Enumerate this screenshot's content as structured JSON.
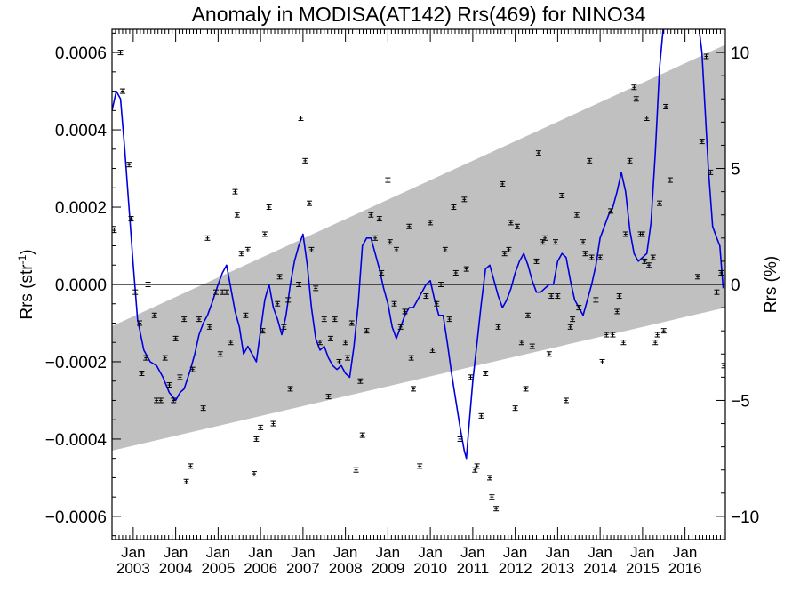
{
  "chart_data": {
    "type": "scatter",
    "title": "Anomaly in MODISA(AT142) Rrs(469) for NINO34",
    "ylabel_left": "Rrs (str",
    "ylabel_left_sup": "-1",
    "ylabel_left_close": ")",
    "ylabel_right": "Rrs (%)",
    "ylim_left": [
      -0.00066,
      0.00066
    ],
    "ylim_right": [
      -11.0,
      11.0
    ],
    "xlim": [
      2002.5,
      2016.95
    ],
    "left_ticks": [
      {
        "v": 0.0006,
        "label": "0.0006"
      },
      {
        "v": 0.0004,
        "label": "0.0004"
      },
      {
        "v": 0.0002,
        "label": "0.0002"
      },
      {
        "v": 0.0,
        "label": "0.0000"
      },
      {
        "v": -0.0002,
        "label": "−0.0002"
      },
      {
        "v": -0.0004,
        "label": "−0.0004"
      },
      {
        "v": -0.0006,
        "label": "−0.0006"
      }
    ],
    "right_ticks": [
      {
        "v": 10,
        "label": "10"
      },
      {
        "v": 5,
        "label": "5"
      },
      {
        "v": 0,
        "label": "0"
      },
      {
        "v": -5,
        "label": "−5"
      },
      {
        "v": -10,
        "label": "−10"
      }
    ],
    "x_ticks": [
      {
        "v": 2003.0,
        "month": "Jan",
        "year": "2003"
      },
      {
        "v": 2004.0,
        "month": "Jan",
        "year": "2004"
      },
      {
        "v": 2005.0,
        "month": "Jan",
        "year": "2005"
      },
      {
        "v": 2006.0,
        "month": "Jan",
        "year": "2006"
      },
      {
        "v": 2007.0,
        "month": "Jan",
        "year": "2007"
      },
      {
        "v": 2008.0,
        "month": "Jan",
        "year": "2008"
      },
      {
        "v": 2009.0,
        "month": "Jan",
        "year": "2009"
      },
      {
        "v": 2010.0,
        "month": "Jan",
        "year": "2010"
      },
      {
        "v": 2011.0,
        "month": "Jan",
        "year": "2011"
      },
      {
        "v": 2012.0,
        "month": "Jan",
        "year": "2012"
      },
      {
        "v": 2013.0,
        "month": "Jan",
        "year": "2013"
      },
      {
        "v": 2014.0,
        "month": "Jan",
        "year": "2014"
      },
      {
        "v": 2015.0,
        "month": "Jan",
        "year": "2015"
      },
      {
        "v": 2016.0,
        "month": "Jan",
        "year": "2016"
      }
    ],
    "band": {
      "x": [
        2002.5,
        2016.95
      ],
      "lower": [
        -0.00043,
        -6e-05
      ],
      "upper": [
        -0.000108,
        0.00062
      ]
    },
    "colors": {
      "smooth": "#0000dd",
      "band": "#c0c0c0",
      "points": "#000000"
    },
    "smooth_line": [
      [
        2002.5,
        0.00045
      ],
      [
        2002.6,
        0.0005
      ],
      [
        2002.7,
        0.00048
      ],
      [
        2002.8,
        0.00035
      ],
      [
        2002.9,
        0.0002
      ],
      [
        2003.0,
        5e-05
      ],
      [
        2003.1,
        -9e-05
      ],
      [
        2003.25,
        -0.00017
      ],
      [
        2003.4,
        -0.0002
      ],
      [
        2003.55,
        -0.00021
      ],
      [
        2003.7,
        -0.00024
      ],
      [
        2003.85,
        -0.00028
      ],
      [
        2004.0,
        -0.0003
      ],
      [
        2004.1,
        -0.00028
      ],
      [
        2004.2,
        -0.00027
      ],
      [
        2004.35,
        -0.00022
      ],
      [
        2004.45,
        -0.00018
      ],
      [
        2004.55,
        -0.00013
      ],
      [
        2004.65,
        -0.0001
      ],
      [
        2004.75,
        -8e-05
      ],
      [
        2004.85,
        -5e-05
      ],
      [
        2005.0,
        0.0
      ],
      [
        2005.1,
        3e-05
      ],
      [
        2005.2,
        5e-05
      ],
      [
        2005.3,
        -1e-05
      ],
      [
        2005.4,
        -7e-05
      ],
      [
        2005.5,
        -0.00011
      ],
      [
        2005.6,
        -0.00018
      ],
      [
        2005.7,
        -0.00016
      ],
      [
        2005.8,
        -0.00018
      ],
      [
        2005.9,
        -0.0002
      ],
      [
        2006.0,
        -0.00012
      ],
      [
        2006.1,
        -4e-05
      ],
      [
        2006.2,
        -0.0
      ],
      [
        2006.3,
        -6e-05
      ],
      [
        2006.4,
        -9e-05
      ],
      [
        2006.5,
        -0.00013
      ],
      [
        2006.6,
        -8e-05
      ],
      [
        2006.7,
        0.0
      ],
      [
        2006.8,
        6e-05
      ],
      [
        2006.9,
        0.0001
      ],
      [
        2007.0,
        0.00013
      ],
      [
        2007.1,
        5e-05
      ],
      [
        2007.2,
        -6e-05
      ],
      [
        2007.3,
        -0.00014
      ],
      [
        2007.4,
        -0.00017
      ],
      [
        2007.5,
        -0.00016
      ],
      [
        2007.6,
        -0.00019
      ],
      [
        2007.7,
        -0.00021
      ],
      [
        2007.8,
        -0.00022
      ],
      [
        2007.9,
        -0.00021
      ],
      [
        2008.0,
        -0.00023
      ],
      [
        2008.1,
        -0.00024
      ],
      [
        2008.2,
        -0.00016
      ],
      [
        2008.3,
        -5e-05
      ],
      [
        2008.4,
        0.0001
      ],
      [
        2008.5,
        0.00012
      ],
      [
        2008.6,
        0.00012
      ],
      [
        2008.7,
        8e-05
      ],
      [
        2008.8,
        4e-05
      ],
      [
        2008.9,
        -1e-05
      ],
      [
        2009.0,
        -5e-05
      ],
      [
        2009.1,
        -0.00011
      ],
      [
        2009.2,
        -0.00014
      ],
      [
        2009.3,
        -0.00011
      ],
      [
        2009.4,
        -8e-05
      ],
      [
        2009.5,
        -6e-05
      ],
      [
        2009.6,
        -6e-05
      ],
      [
        2009.7,
        -4e-05
      ],
      [
        2009.8,
        -2e-05
      ],
      [
        2009.9,
        0.0
      ],
      [
        2010.0,
        1e-05
      ],
      [
        2010.1,
        -4e-05
      ],
      [
        2010.2,
        -8e-05
      ],
      [
        2010.3,
        -8e-05
      ],
      [
        2010.4,
        -0.00015
      ],
      [
        2010.5,
        -0.00023
      ],
      [
        2010.6,
        -0.0003
      ],
      [
        2010.7,
        -0.00037
      ],
      [
        2010.8,
        -0.00043
      ],
      [
        2010.85,
        -0.00045
      ],
      [
        2010.9,
        -0.00038
      ],
      [
        2011.0,
        -0.00025
      ],
      [
        2011.1,
        -0.00015
      ],
      [
        2011.2,
        -5e-05
      ],
      [
        2011.3,
        4e-05
      ],
      [
        2011.4,
        5e-05
      ],
      [
        2011.5,
        1e-05
      ],
      [
        2011.6,
        -3e-05
      ],
      [
        2011.7,
        -6e-05
      ],
      [
        2011.8,
        -4e-05
      ],
      [
        2011.9,
        -1e-05
      ],
      [
        2012.0,
        3e-05
      ],
      [
        2012.1,
        6e-05
      ],
      [
        2012.2,
        8e-05
      ],
      [
        2012.3,
        5e-05
      ],
      [
        2012.4,
        1e-05
      ],
      [
        2012.5,
        -2e-05
      ],
      [
        2012.6,
        -2e-05
      ],
      [
        2012.7,
        -1e-05
      ],
      [
        2012.8,
        0.0
      ],
      [
        2012.9,
        0.0
      ],
      [
        2013.0,
        6e-05
      ],
      [
        2013.1,
        8e-05
      ],
      [
        2013.2,
        7e-05
      ],
      [
        2013.3,
        1e-05
      ],
      [
        2013.4,
        -4e-05
      ],
      [
        2013.5,
        -6e-05
      ],
      [
        2013.6,
        -8e-05
      ],
      [
        2013.7,
        -4e-05
      ],
      [
        2013.8,
        0.0
      ],
      [
        2013.9,
        5e-05
      ],
      [
        2014.0,
        0.00012
      ],
      [
        2014.1,
        0.00015
      ],
      [
        2014.2,
        0.00018
      ],
      [
        2014.3,
        0.0002
      ],
      [
        2014.4,
        0.00024
      ],
      [
        2014.5,
        0.00029
      ],
      [
        2014.6,
        0.00024
      ],
      [
        2014.7,
        0.00014
      ],
      [
        2014.8,
        8e-05
      ],
      [
        2014.9,
        6e-05
      ],
      [
        2015.0,
        7e-05
      ],
      [
        2015.1,
        8e-05
      ],
      [
        2015.2,
        0.00016
      ],
      [
        2015.3,
        0.00034
      ],
      [
        2015.4,
        0.00056
      ],
      [
        2015.5,
        0.00068
      ],
      [
        2015.6,
        0.00075
      ],
      [
        2015.7,
        0.0008
      ],
      [
        2015.8,
        0.00082
      ],
      [
        2016.0,
        0.0008
      ],
      [
        2016.2,
        0.00078
      ],
      [
        2016.4,
        0.0006
      ],
      [
        2016.55,
        0.0003
      ],
      [
        2016.65,
        0.00015
      ],
      [
        2016.75,
        0.00012
      ],
      [
        2016.82,
        0.0001
      ],
      [
        2016.87,
        3e-05
      ],
      [
        2016.9,
        -1e-05
      ]
    ],
    "points": [
      [
        2002.55,
        0.00014
      ],
      [
        2002.7,
        0.0006
      ],
      [
        2002.75,
        0.0005
      ],
      [
        2002.9,
        0.00031
      ],
      [
        2002.95,
        0.00017
      ],
      [
        2003.05,
        -2e-05
      ],
      [
        2003.15,
        -0.0001
      ],
      [
        2003.2,
        -0.00023
      ],
      [
        2003.3,
        -0.00019
      ],
      [
        2003.35,
        0.0
      ],
      [
        2003.5,
        -8e-05
      ],
      [
        2003.55,
        -0.0003
      ],
      [
        2003.65,
        -0.0003
      ],
      [
        2003.75,
        -0.00019
      ],
      [
        2003.85,
        -0.00026
      ],
      [
        2003.95,
        -0.0003
      ],
      [
        2004.0,
        -0.00014
      ],
      [
        2004.1,
        -0.00024
      ],
      [
        2004.2,
        -9e-05
      ],
      [
        2004.25,
        -0.00051
      ],
      [
        2004.35,
        -0.00047
      ],
      [
        2004.4,
        -0.00022
      ],
      [
        2004.55,
        -9e-05
      ],
      [
        2004.65,
        -0.00032
      ],
      [
        2004.75,
        0.00012
      ],
      [
        2004.8,
        -0.00011
      ],
      [
        2004.95,
        -2e-05
      ],
      [
        2005.05,
        -0.00018
      ],
      [
        2005.1,
        -2e-05
      ],
      [
        2005.2,
        -2e-05
      ],
      [
        2005.3,
        -0.00015
      ],
      [
        2005.4,
        0.00024
      ],
      [
        2005.45,
        0.00018
      ],
      [
        2005.55,
        8e-05
      ],
      [
        2005.65,
        -8e-05
      ],
      [
        2005.7,
        9e-05
      ],
      [
        2005.85,
        -0.00049
      ],
      [
        2005.9,
        -0.0004
      ],
      [
        2006.0,
        -0.00037
      ],
      [
        2006.05,
        -0.00012
      ],
      [
        2006.1,
        0.00013
      ],
      [
        2006.2,
        0.0002
      ],
      [
        2006.3,
        -0.00036
      ],
      [
        2006.4,
        -5e-05
      ],
      [
        2006.45,
        2e-05
      ],
      [
        2006.55,
        -0.00011
      ],
      [
        2006.65,
        -4e-05
      ],
      [
        2006.7,
        -0.00027
      ],
      [
        2006.9,
        0.0
      ],
      [
        2006.95,
        0.00043
      ],
      [
        2007.05,
        0.00032
      ],
      [
        2007.15,
        0.00021
      ],
      [
        2007.2,
        9e-05
      ],
      [
        2007.3,
        -1e-05
      ],
      [
        2007.4,
        -0.00015
      ],
      [
        2007.5,
        -9e-05
      ],
      [
        2007.6,
        -0.00029
      ],
      [
        2007.65,
        -0.00014
      ],
      [
        2007.75,
        -9e-05
      ],
      [
        2007.85,
        -0.0002
      ],
      [
        2008.0,
        -0.00015
      ],
      [
        2008.05,
        -0.00019
      ],
      [
        2008.15,
        -0.0001
      ],
      [
        2008.25,
        -0.00048
      ],
      [
        2008.35,
        -0.00025
      ],
      [
        2008.4,
        -0.00039
      ],
      [
        2008.5,
        -0.00012
      ],
      [
        2008.6,
        0.00018
      ],
      [
        2008.7,
        0.00012
      ],
      [
        2008.8,
        0.00017
      ],
      [
        2008.85,
        3e-05
      ],
      [
        2009.0,
        0.00027
      ],
      [
        2009.05,
        0.00011
      ],
      [
        2009.15,
        -5e-05
      ],
      [
        2009.2,
        9e-05
      ],
      [
        2009.3,
        -0.00011
      ],
      [
        2009.4,
        -7e-05
      ],
      [
        2009.5,
        0.00015
      ],
      [
        2009.55,
        -0.00019
      ],
      [
        2009.6,
        -0.00027
      ],
      [
        2009.75,
        -0.00047
      ],
      [
        2009.9,
        -3e-05
      ],
      [
        2010.0,
        0.00016
      ],
      [
        2010.05,
        -0.00017
      ],
      [
        2010.15,
        -5e-05
      ],
      [
        2010.25,
        0.0
      ],
      [
        2010.35,
        9e-05
      ],
      [
        2010.45,
        -9e-05
      ],
      [
        2010.55,
        0.0002
      ],
      [
        2010.6,
        3e-05
      ],
      [
        2010.7,
        -0.0004
      ],
      [
        2010.8,
        0.00022
      ],
      [
        2010.85,
        4e-05
      ],
      [
        2010.95,
        -0.00024
      ],
      [
        2011.05,
        -0.00048
      ],
      [
        2011.1,
        -0.00047
      ],
      [
        2011.2,
        -0.00034
      ],
      [
        2011.3,
        -0.00023
      ],
      [
        2011.4,
        -0.0005
      ],
      [
        2011.45,
        -0.00055
      ],
      [
        2011.55,
        -0.00058
      ],
      [
        2011.6,
        -0.00011
      ],
      [
        2011.7,
        0.00026
      ],
      [
        2011.75,
        8e-05
      ],
      [
        2011.85,
        9e-05
      ],
      [
        2011.9,
        0.00016
      ],
      [
        2012.0,
        -0.00032
      ],
      [
        2012.05,
        0.00015
      ],
      [
        2012.15,
        -0.00015
      ],
      [
        2012.25,
        -0.00027
      ],
      [
        2012.3,
        -8e-05
      ],
      [
        2012.4,
        -0.00016
      ],
      [
        2012.5,
        6e-05
      ],
      [
        2012.55,
        0.00034
      ],
      [
        2012.65,
        0.00011
      ],
      [
        2012.7,
        0.00012
      ],
      [
        2012.8,
        -0.00018
      ],
      [
        2012.85,
        -3e-05
      ],
      [
        2012.95,
        0.00011
      ],
      [
        2013.0,
        -3e-05
      ],
      [
        2013.1,
        0.00023
      ],
      [
        2013.2,
        -0.0003
      ],
      [
        2013.3,
        -0.00011
      ],
      [
        2013.35,
        -9e-05
      ],
      [
        2013.45,
        0.00018
      ],
      [
        2013.5,
        -6e-05
      ],
      [
        2013.6,
        0.00011
      ],
      [
        2013.65,
        8e-05
      ],
      [
        2013.75,
        0.00032
      ],
      [
        2013.8,
        7e-05
      ],
      [
        2013.9,
        -4e-05
      ],
      [
        2014.0,
        7e-05
      ],
      [
        2014.05,
        -0.0002
      ],
      [
        2014.15,
        -0.00013
      ],
      [
        2014.25,
        0.00019
      ],
      [
        2014.3,
        -0.00013
      ],
      [
        2014.4,
        -7e-05
      ],
      [
        2014.45,
        -3e-05
      ],
      [
        2014.55,
        -0.00015
      ],
      [
        2014.6,
        0.00013
      ],
      [
        2014.7,
        0.00032
      ],
      [
        2014.8,
        0.00051
      ],
      [
        2014.85,
        0.00048
      ],
      [
        2014.95,
        0.00013
      ],
      [
        2015.0,
        0.00013
      ],
      [
        2015.05,
        6e-05
      ],
      [
        2015.1,
        0.00043
      ],
      [
        2015.15,
        5e-05
      ],
      [
        2015.25,
        7e-05
      ],
      [
        2015.3,
        -0.00015
      ],
      [
        2015.35,
        -0.00013
      ],
      [
        2015.4,
        0.00021
      ],
      [
        2015.5,
        -0.00012
      ],
      [
        2015.55,
        0.00046
      ],
      [
        2015.65,
        0.00027
      ],
      [
        2016.3,
        2e-05
      ],
      [
        2016.4,
        0.00037
      ],
      [
        2016.5,
        0.00059
      ],
      [
        2016.6,
        0.00029
      ],
      [
        2016.75,
        -2e-05
      ],
      [
        2016.85,
        3e-05
      ],
      [
        2016.92,
        -0.00021
      ]
    ]
  }
}
